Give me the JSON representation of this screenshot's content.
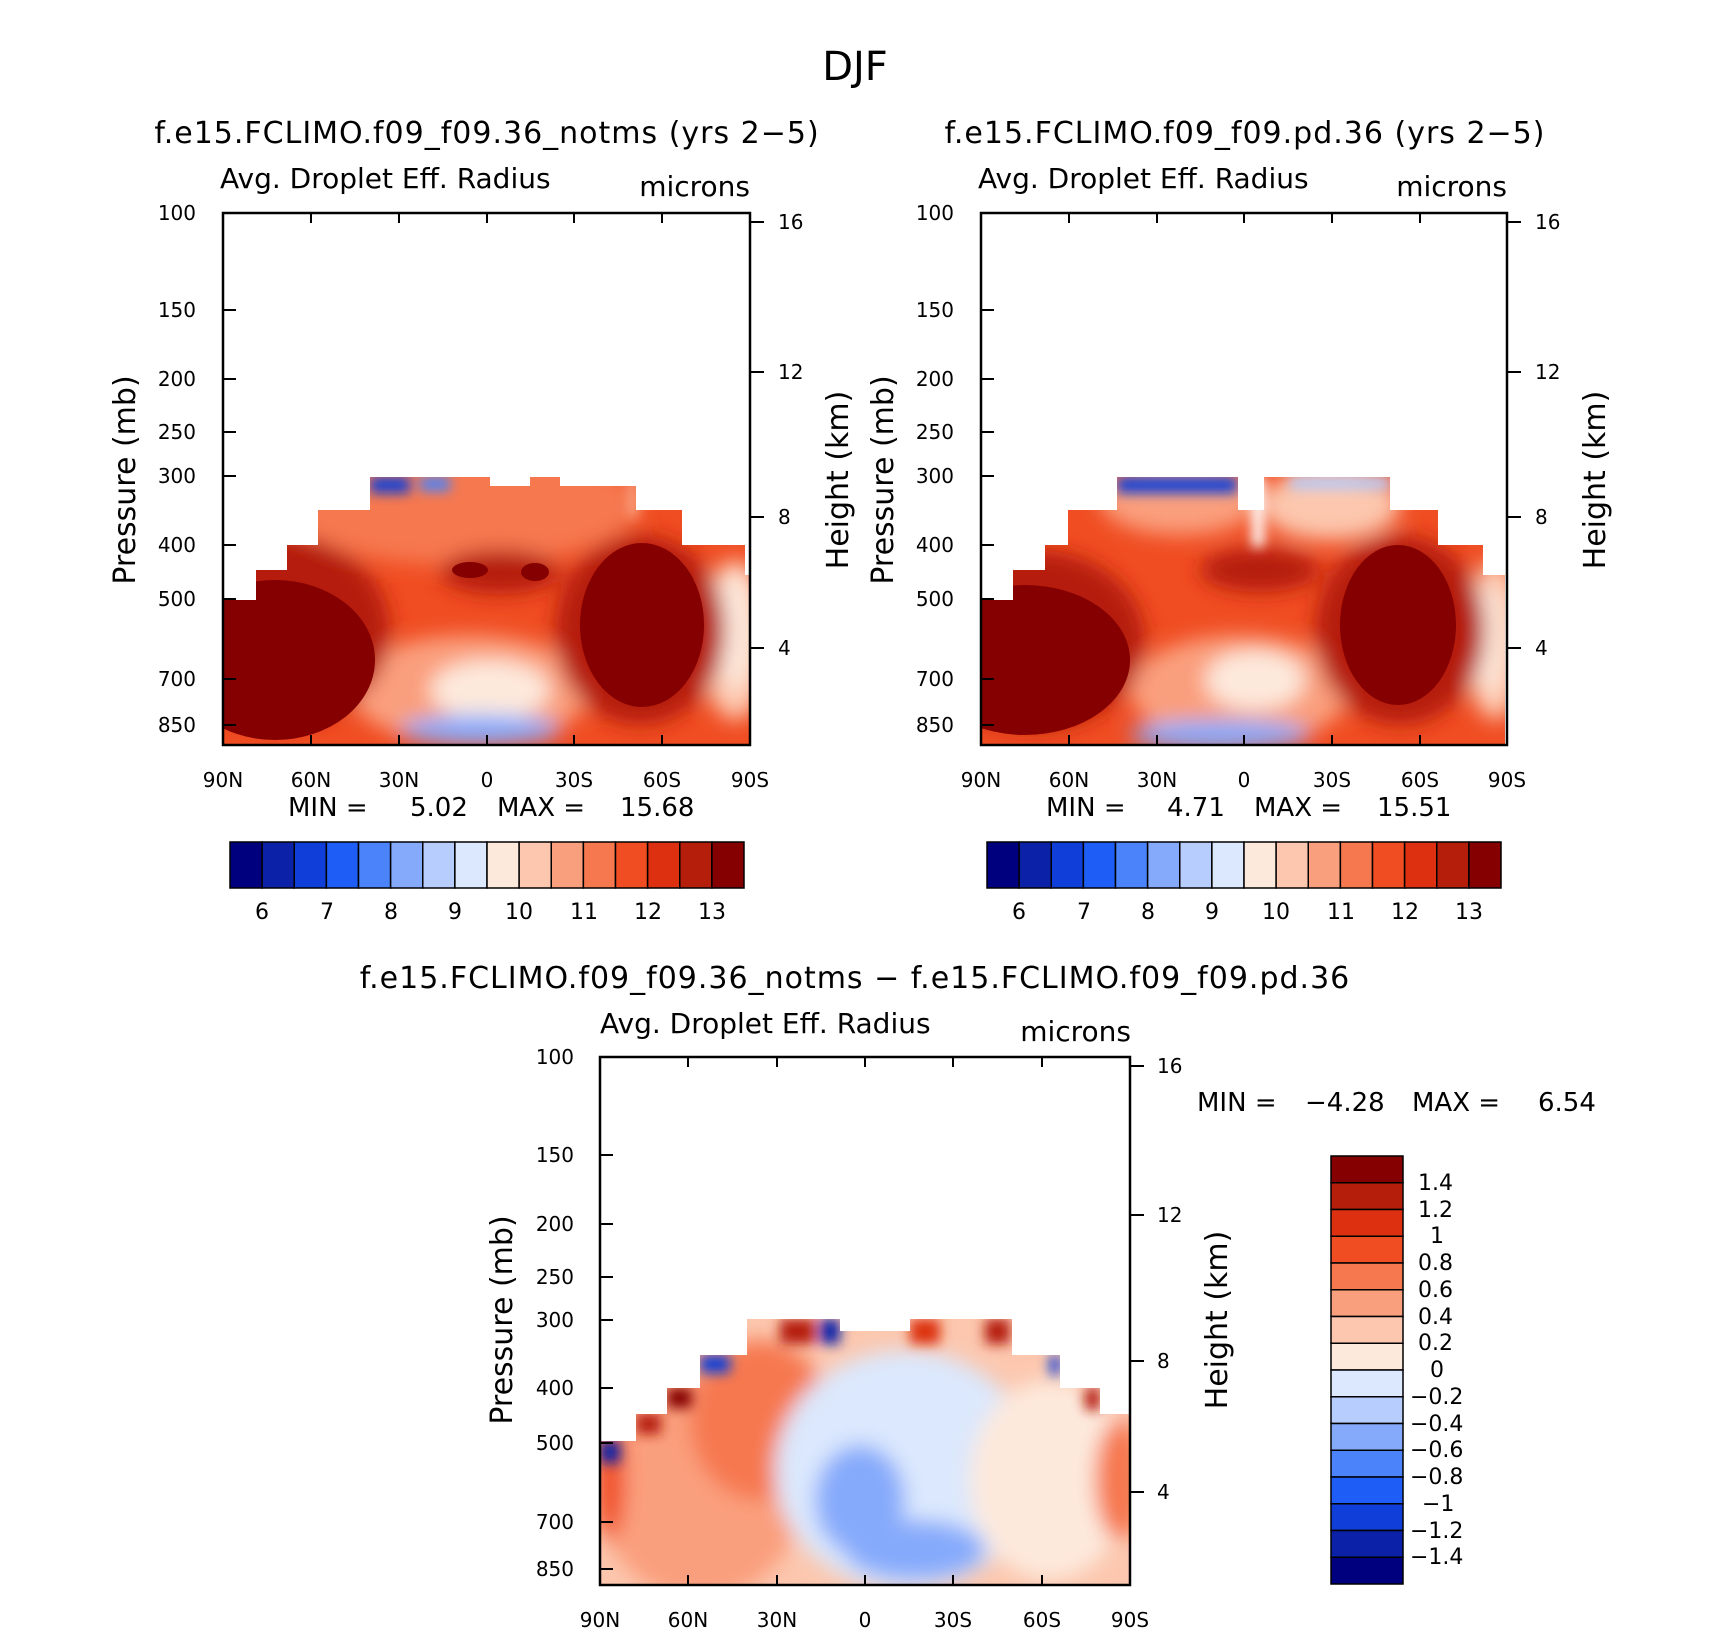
{
  "chart_data": [
    {
      "type": "heatmap",
      "title": "f.e15.FCLIMO.f09_f09.36_notms (yrs 2−5)",
      "variable_label": "Avg. Droplet Eff. Radius",
      "units_label": "microns",
      "ylabel": "Pressure (mb)",
      "y2label": "Height (km)",
      "x_ticks": [
        "90N",
        "60N",
        "30N",
        "0",
        "30S",
        "60S",
        "90S"
      ],
      "y_ticks": [
        "100",
        "150",
        "200",
        "250",
        "300",
        "400",
        "500",
        "700",
        "850"
      ],
      "y2_ticks": [
        "16",
        "12",
        "8",
        "4"
      ],
      "min_label": "MIN =",
      "min_value": "5.02",
      "max_label": "MAX =",
      "max_value": "15.68",
      "ylim": [
        880,
        100
      ],
      "colorbar_labels": [
        "6",
        "7",
        "8",
        "9",
        "10",
        "11",
        "12",
        "13"
      ],
      "colorbar_colors": [
        "#00007f",
        "#0a21a8",
        "#0f3fd8",
        "#1e5ef7",
        "#4a83fa",
        "#86aafb",
        "#b6cdfd",
        "#dbe8fd",
        "#fde9dc",
        "#fcc7ae",
        "#fa9f7d",
        "#f6784f",
        "#f04d22",
        "#dc3010",
        "#b51e0a",
        "#850000"
      ]
    },
    {
      "type": "heatmap",
      "title": "f.e15.FCLIMO.f09_f09.pd.36 (yrs 2−5)",
      "variable_label": "Avg. Droplet Eff. Radius",
      "units_label": "microns",
      "ylabel": "Pressure (mb)",
      "y2label": "Height (km)",
      "x_ticks": [
        "90N",
        "60N",
        "30N",
        "0",
        "30S",
        "60S",
        "90S"
      ],
      "y_ticks": [
        "100",
        "150",
        "200",
        "250",
        "300",
        "400",
        "500",
        "700",
        "850"
      ],
      "y2_ticks": [
        "16",
        "12",
        "8",
        "4"
      ],
      "min_label": "MIN =",
      "min_value": "4.71",
      "max_label": "MAX =",
      "max_value": "15.51",
      "ylim": [
        880,
        100
      ],
      "colorbar_labels": [
        "6",
        "7",
        "8",
        "9",
        "10",
        "11",
        "12",
        "13"
      ],
      "colorbar_colors": [
        "#00007f",
        "#0a21a8",
        "#0f3fd8",
        "#1e5ef7",
        "#4a83fa",
        "#86aafb",
        "#b6cdfd",
        "#dbe8fd",
        "#fde9dc",
        "#fcc7ae",
        "#fa9f7d",
        "#f6784f",
        "#f04d22",
        "#dc3010",
        "#b51e0a",
        "#850000"
      ]
    },
    {
      "type": "heatmap",
      "title": "f.e15.FCLIMO.f09_f09.36_notms − f.e15.FCLIMO.f09_f09.pd.36",
      "variable_label": "Avg. Droplet Eff. Radius",
      "units_label": "microns",
      "ylabel": "Pressure (mb)",
      "y2label": "Height (km)",
      "x_ticks": [
        "90N",
        "60N",
        "30N",
        "0",
        "30S",
        "60S",
        "90S"
      ],
      "y_ticks": [
        "100",
        "150",
        "200",
        "250",
        "300",
        "400",
        "500",
        "700",
        "850"
      ],
      "y2_ticks": [
        "16",
        "12",
        "8",
        "4"
      ],
      "min_label": "MIN =",
      "min_value": "−4.28",
      "max_label": "MAX =",
      "max_value": "6.54",
      "ylim": [
        880,
        100
      ],
      "colorbar_labels": [
        "1.4",
        "1.2",
        "1",
        "0.8",
        "0.6",
        "0.4",
        "0.2",
        "0",
        "−0.2",
        "−0.4",
        "−0.6",
        "−0.8",
        "−1",
        "−1.2",
        "−1.4"
      ],
      "colorbar_colors": [
        "#850000",
        "#b51e0a",
        "#dc3010",
        "#f04d22",
        "#f6784f",
        "#fa9f7d",
        "#fcc7ae",
        "#fde9dc",
        "#dbe8fd",
        "#b6cdfd",
        "#86aafb",
        "#4a83fa",
        "#1e5ef7",
        "#0f3fd8",
        "#0a21a8",
        "#00007f"
      ]
    }
  ],
  "figure": {
    "title": "DJF"
  }
}
